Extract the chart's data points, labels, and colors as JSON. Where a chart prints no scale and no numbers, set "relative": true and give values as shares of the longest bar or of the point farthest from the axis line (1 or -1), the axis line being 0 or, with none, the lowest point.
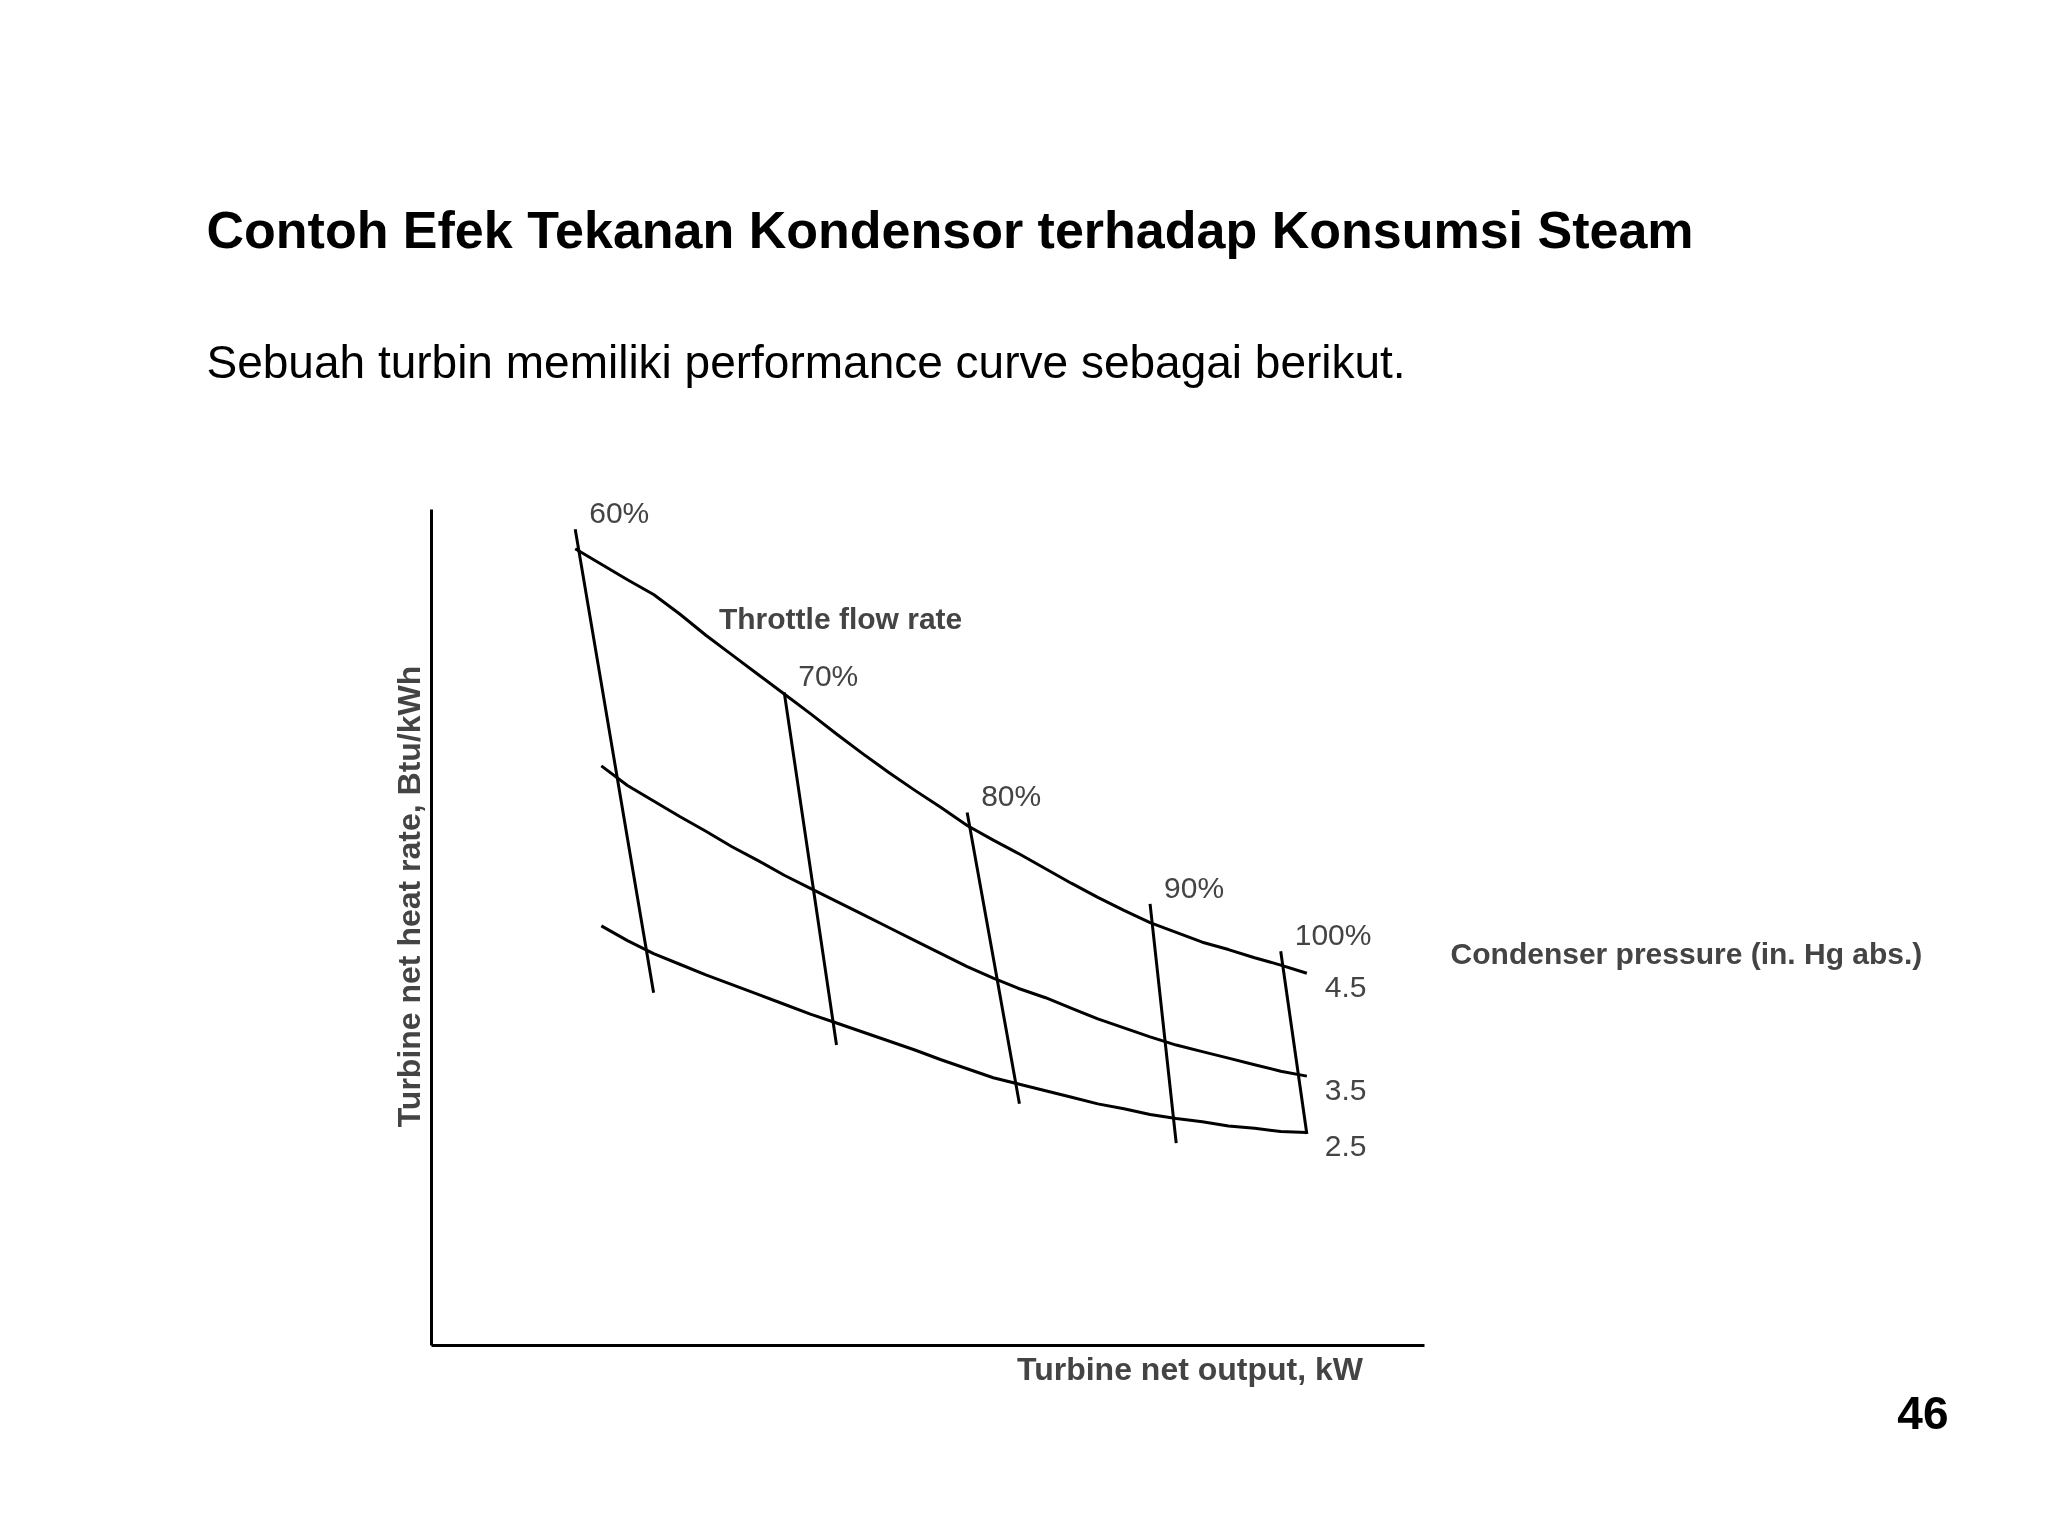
{
  "chart_data": {
    "type": "line",
    "title": "Contoh Efek Tekanan Kondensor terhadap Konsumsi Steam",
    "subtitle": "Sebuah turbin memiliki performance curve sebagai berikut.",
    "xlabel": "Turbine net output, kW",
    "ylabel": "Turbine net heat rate, Btu/kWh",
    "relative": true,
    "marker": "none",
    "line_style": "solid",
    "categories": [
      null,
      null,
      null,
      null,
      null,
      null,
      null,
      null,
      null,
      null,
      null,
      null,
      null,
      null,
      null,
      null,
      null,
      null,
      null,
      null,
      null,
      null,
      null,
      null,
      null,
      null,
      null,
      null,
      null
    ],
    "series": [
      {
        "name": "4.5",
        "color": "#000000",
        "values": [
          0.976,
          0.957,
          0.938,
          0.92,
          0.896,
          0.87,
          0.846,
          0.822,
          0.798,
          0.774,
          0.749,
          0.725,
          0.702,
          0.68,
          0.659,
          0.637,
          0.619,
          0.602,
          0.584,
          0.566,
          0.549,
          0.533,
          0.518,
          0.506,
          0.494,
          0.485,
          0.475,
          0.466,
          0.456
        ]
      },
      {
        "name": "3.5",
        "color": "#000000",
        "values": [
          null,
          0.71,
          0.686,
          0.667,
          0.648,
          0.63,
          0.611,
          0.594,
          0.576,
          0.56,
          0.544,
          0.528,
          0.512,
          0.496,
          0.48,
          0.464,
          0.45,
          0.437,
          0.426,
          0.413,
          0.4,
          0.389,
          0.378,
          0.368,
          0.36,
          0.352,
          0.344,
          0.336,
          0.33
        ]
      },
      {
        "name": "2.5",
        "color": "#000000",
        "values": [
          null,
          0.514,
          0.496,
          0.48,
          0.467,
          0.454,
          0.442,
          0.43,
          0.418,
          0.406,
          0.395,
          0.384,
          0.373,
          0.362,
          0.35,
          0.339,
          0.328,
          0.32,
          0.312,
          0.304,
          0.296,
          0.29,
          0.283,
          0.278,
          0.274,
          0.269,
          0.266,
          0.262,
          0.261
        ]
      },
      {
        "name": "60%",
        "color": "#000000",
        "values": [
          1.0,
          0.811,
          0.621,
          0.432,
          null,
          null,
          null,
          null,
          null,
          null,
          null,
          null,
          null,
          null,
          null,
          null,
          null,
          null,
          null,
          null,
          null,
          null,
          null,
          null,
          null,
          null,
          null,
          null,
          null
        ]
      },
      {
        "name": "70%",
        "color": "#000000",
        "values": [
          null,
          null,
          null,
          null,
          null,
          null,
          null,
          null,
          0.8,
          0.584,
          0.368,
          null,
          null,
          null,
          null,
          null,
          null,
          null,
          null,
          null,
          null,
          null,
          null,
          null,
          null,
          null,
          null,
          null,
          null
        ]
      },
      {
        "name": "80%",
        "color": "#000000",
        "values": [
          null,
          null,
          null,
          null,
          null,
          null,
          null,
          null,
          null,
          null,
          null,
          null,
          null,
          null,
          null,
          0.653,
          0.475,
          0.296,
          null,
          null,
          null,
          null,
          null,
          null,
          null,
          null,
          null,
          null,
          null
        ]
      },
      {
        "name": "90%",
        "color": "#000000",
        "values": [
          null,
          null,
          null,
          null,
          null,
          null,
          null,
          null,
          null,
          null,
          null,
          null,
          null,
          null,
          null,
          null,
          null,
          null,
          null,
          null,
          null,
          null,
          0.541,
          0.248,
          null,
          null,
          null,
          null,
          null
        ]
      },
      {
        "name": "100%",
        "color": "#000000",
        "values": [
          null,
          null,
          null,
          null,
          null,
          null,
          null,
          null,
          null,
          null,
          null,
          null,
          null,
          null,
          null,
          null,
          null,
          null,
          null,
          null,
          null,
          null,
          null,
          null,
          null,
          null,
          null,
          0.483,
          0.259
        ]
      }
    ],
    "annotations": [
      "Throttle flow rate",
      "Condenser pressure (in. Hg abs.)",
      "46"
    ]
  }
}
